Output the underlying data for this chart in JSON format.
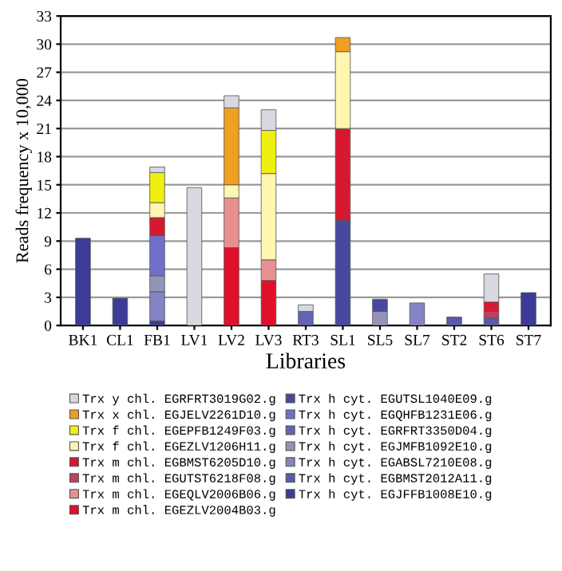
{
  "chart_data": {
    "type": "bar",
    "stacked": true,
    "xlabel": "Libraries",
    "ylabel": "Reads frequency x 10,000",
    "categories": [
      "BK1",
      "CL1",
      "FB1",
      "LV1",
      "LV2",
      "LV3",
      "RT3",
      "SL1",
      "SL5",
      "SL7",
      "ST2",
      "ST6",
      "ST7"
    ],
    "ylim": [
      0,
      33
    ],
    "yticks": [
      0,
      3,
      6,
      9,
      12,
      15,
      18,
      21,
      24,
      27,
      30,
      33
    ],
    "grid": "y",
    "legend": "bottom",
    "series": [
      {
        "name": "Trx h cyt. EGJFFB1008E10.g",
        "color": "#3c3c96",
        "values": [
          9.3,
          2.9,
          0.5,
          null,
          null,
          null,
          null,
          null,
          null,
          null,
          null,
          null,
          3.5
        ]
      },
      {
        "name": "Trx h cyt. EGBMST2012A11.g",
        "color": "#5a5aaa",
        "values": [
          null,
          null,
          null,
          null,
          null,
          null,
          null,
          null,
          null,
          null,
          0.9,
          0.8,
          null
        ]
      },
      {
        "name": "Trx h cyt. EGABSL7210E08.g",
        "color": "#8484c4",
        "values": [
          null,
          null,
          3.1,
          null,
          null,
          null,
          null,
          null,
          null,
          2.4,
          null,
          null,
          null
        ]
      },
      {
        "name": "Trx h cyt. EGJMFB1092E10.g",
        "color": "#9494b8",
        "values": [
          null,
          null,
          1.7,
          null,
          null,
          null,
          null,
          null,
          1.5,
          null,
          null,
          null,
          null
        ]
      },
      {
        "name": "Trx h cyt. EGRFRT3350D04.g",
        "color": "#6464b4",
        "values": [
          null,
          null,
          null,
          null,
          null,
          null,
          1.5,
          null,
          null,
          null,
          null,
          null,
          null
        ]
      },
      {
        "name": "Trx h cyt. EGQHFB1231E06.g",
        "color": "#7070c8",
        "values": [
          null,
          null,
          4.3,
          null,
          null,
          null,
          null,
          null,
          null,
          null,
          null,
          null,
          null
        ]
      },
      {
        "name": "Trx h cyt. EGUTSL1040E09.g",
        "color": "#4848a0",
        "values": [
          null,
          null,
          null,
          null,
          null,
          null,
          null,
          11.2,
          1.3,
          null,
          null,
          null,
          null
        ]
      },
      {
        "name": "Trx m chl. EGEZLV2004B03.g",
        "color": "#e0102a",
        "values": [
          null,
          null,
          null,
          null,
          8.3,
          4.8,
          null,
          null,
          null,
          null,
          null,
          null,
          null
        ]
      },
      {
        "name": "Trx m chl. EGEQLV2006B06.g",
        "color": "#e89090",
        "values": [
          null,
          null,
          null,
          null,
          5.3,
          2.2,
          null,
          null,
          null,
          null,
          null,
          null,
          null
        ]
      },
      {
        "name": "Trx m chl. EGUTST6218F08.g",
        "color": "#c04060",
        "values": [
          null,
          null,
          null,
          null,
          null,
          null,
          null,
          null,
          null,
          null,
          null,
          0.7,
          null
        ]
      },
      {
        "name": "Trx m chl. EGBMST6205D10.g",
        "color": "#d81830",
        "values": [
          null,
          null,
          1.9,
          null,
          null,
          null,
          null,
          9.8,
          null,
          null,
          null,
          1.0,
          null
        ]
      },
      {
        "name": "Trx f chl. EGEZLV1206H11.g",
        "color": "#fff6b0",
        "values": [
          null,
          null,
          1.6,
          null,
          1.4,
          9.2,
          null,
          8.2,
          null,
          null,
          null,
          null,
          null
        ]
      },
      {
        "name": "Trx f chl. EGEPFB1249F03.g",
        "color": "#f0f010",
        "values": [
          null,
          null,
          3.2,
          null,
          null,
          4.6,
          null,
          null,
          null,
          null,
          null,
          null,
          null
        ]
      },
      {
        "name": "Trx x chl. EGJELV2261D10.g",
        "color": "#f0a020",
        "values": [
          null,
          null,
          null,
          null,
          8.2,
          null,
          null,
          1.5,
          null,
          null,
          null,
          null,
          null
        ]
      },
      {
        "name": "Trx y chl. EGRFRT3019G02.g",
        "color": "#d8d8e0",
        "values": [
          null,
          null,
          0.6,
          14.7,
          1.3,
          2.2,
          0.7,
          null,
          null,
          null,
          null,
          3.0,
          null
        ]
      }
    ]
  }
}
